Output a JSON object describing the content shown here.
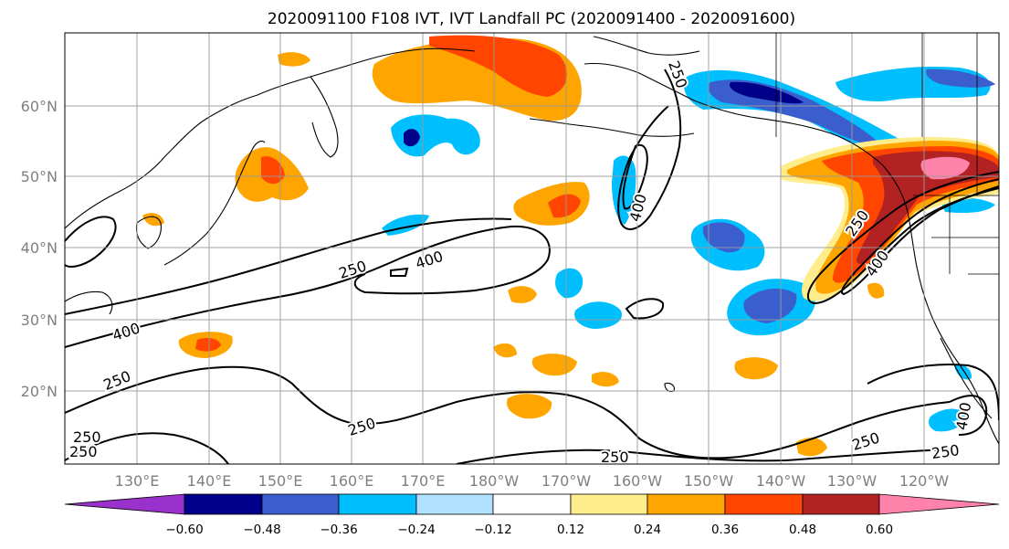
{
  "title": "2020091100 F108 IVT, IVT Landfall PC (2020091400 - 2020091600)",
  "axes": {
    "lat_labels": [
      "60°N",
      "50°N",
      "40°N",
      "30°N",
      "20°N"
    ],
    "lon_labels": [
      "130°E",
      "140°E",
      "150°E",
      "160°E",
      "170°E",
      "180°W",
      "170°W",
      "160°W",
      "150°W",
      "140°W",
      "130°W",
      "120°W"
    ],
    "gridlines": true
  },
  "colorbar": {
    "ticks": [
      "−0.60",
      "−0.48",
      "−0.36",
      "−0.24",
      "−0.12",
      "0.12",
      "0.24",
      "0.36",
      "0.48",
      "0.60"
    ],
    "colors": [
      "#9932cc",
      "#00008b",
      "#3a5fcd",
      "#00bfff",
      "#b0e2ff",
      "#ffffff",
      "#ffec8b",
      "#ffa500",
      "#ff4500",
      "#b22222",
      "#ff82ab"
    ]
  },
  "contours": {
    "labels": [
      "250",
      "400",
      "250",
      "400",
      "250",
      "400",
      "250",
      "250",
      "400",
      "250",
      "250",
      "250",
      "250",
      "400",
      "250"
    ]
  }
}
